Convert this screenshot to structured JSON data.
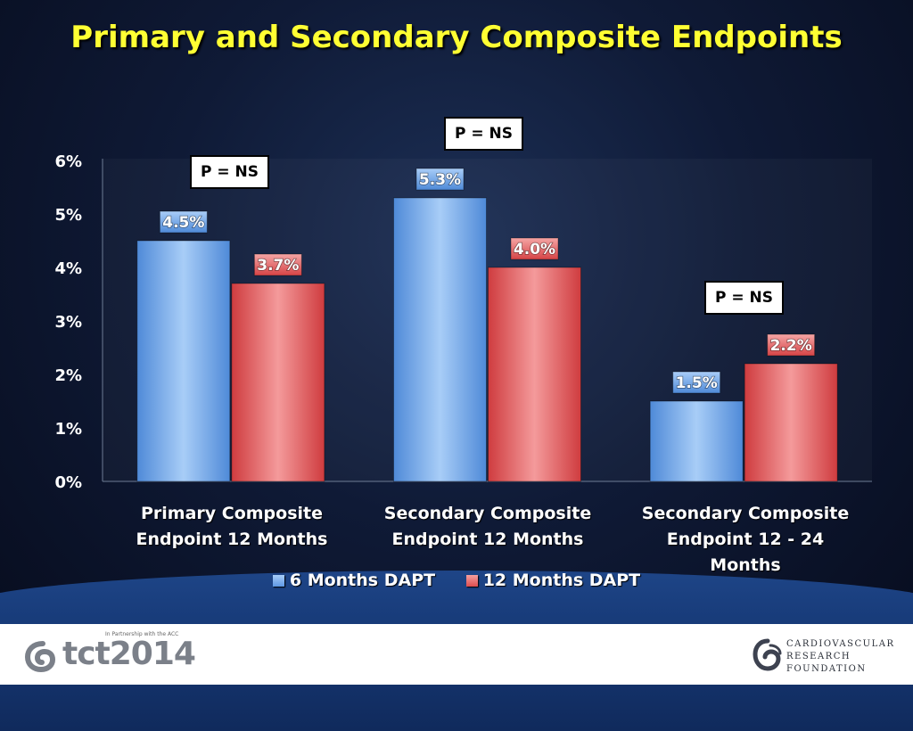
{
  "title": "Primary and Secondary Composite Endpoints",
  "p_labels": [
    "P = NS",
    "P = NS",
    "P = NS"
  ],
  "legend": [
    "6 Months DAPT",
    "12 Months DAPT"
  ],
  "colors": {
    "six_months": "#6aa6ee",
    "twelve_months": "#e65a5c",
    "title": "#ffff33",
    "axis_text": "#ffffff"
  },
  "footer": {
    "brand": "tct2014",
    "tagline": "In Partnership with the ACC",
    "org_lines": [
      "CARDIOVASCULAR",
      "RESEARCH",
      "FOUNDATION"
    ]
  },
  "chart_data": {
    "type": "bar",
    "categories": [
      [
        "Primary Composite",
        "Endpoint 12 Months"
      ],
      [
        "Secondary Composite",
        "Endpoint 12 Months"
      ],
      [
        "Secondary Composite",
        "Endpoint 12 - 24 Months"
      ]
    ],
    "series": [
      {
        "name": "6 Months DAPT",
        "values": [
          4.5,
          5.3,
          1.5
        ],
        "labels": [
          "4.5%",
          "5.3%",
          "1.5%"
        ]
      },
      {
        "name": "12 Months DAPT",
        "values": [
          3.7,
          4.0,
          2.2
        ],
        "labels": [
          "3.7%",
          "4.0%",
          "2.2%"
        ]
      }
    ],
    "yticks": [
      "0%",
      "1%",
      "2%",
      "3%",
      "4%",
      "5%",
      "6%"
    ],
    "ylim": [
      0,
      6
    ],
    "grid": false,
    "legend_position": "bottom"
  }
}
